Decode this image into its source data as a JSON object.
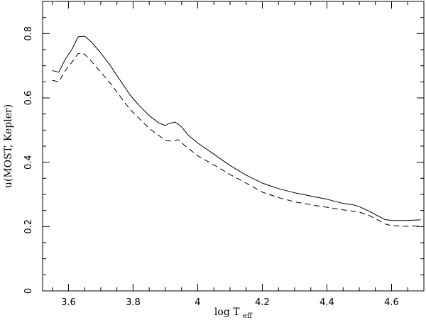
{
  "chart_data": {
    "type": "line",
    "title": "",
    "xlabel": "log T",
    "xlabel_subscript": "eff",
    "ylabel": "u(MOST, Kepler)",
    "xlim": [
      3.52,
      4.7
    ],
    "ylim": [
      0,
      0.9
    ],
    "xticks": [
      3.6,
      3.8,
      4.0,
      4.2,
      4.4,
      4.6
    ],
    "xtick_labels": [
      "3.6",
      "3.8",
      "4",
      "4.2",
      "4.4",
      "4.6"
    ],
    "yticks": [
      0,
      0.2,
      0.4,
      0.6,
      0.8
    ],
    "ytick_labels": [
      "0",
      "0.2",
      "0.4",
      "0.6",
      "0.8"
    ],
    "x_minor_step": 0.05,
    "y_minor_step": 0.05,
    "grid": false,
    "legend": "none",
    "series": [
      {
        "style": "solid",
        "x": [
          3.55,
          3.57,
          3.59,
          3.61,
          3.63,
          3.65,
          3.67,
          3.7,
          3.73,
          3.76,
          3.79,
          3.82,
          3.85,
          3.88,
          3.9,
          3.91,
          3.93,
          3.95,
          3.97,
          4.0,
          4.05,
          4.1,
          4.15,
          4.2,
          4.25,
          4.3,
          4.35,
          4.4,
          4.45,
          4.48,
          4.5,
          4.53,
          4.56,
          4.58,
          4.6,
          4.65,
          4.69
        ],
        "y": [
          0.685,
          0.68,
          0.72,
          0.75,
          0.79,
          0.792,
          0.775,
          0.74,
          0.7,
          0.655,
          0.61,
          0.575,
          0.545,
          0.522,
          0.514,
          0.52,
          0.525,
          0.51,
          0.485,
          0.46,
          0.425,
          0.39,
          0.36,
          0.335,
          0.318,
          0.305,
          0.295,
          0.285,
          0.272,
          0.268,
          0.262,
          0.248,
          0.232,
          0.222,
          0.219,
          0.219,
          0.221
        ]
      },
      {
        "style": "dashed",
        "x": [
          3.55,
          3.57,
          3.59,
          3.61,
          3.63,
          3.65,
          3.67,
          3.7,
          3.73,
          3.76,
          3.79,
          3.82,
          3.85,
          3.88,
          3.9,
          3.92,
          3.94,
          3.96,
          4.0,
          4.05,
          4.1,
          4.15,
          4.2,
          4.25,
          4.3,
          4.35,
          4.4,
          4.45,
          4.48,
          4.5,
          4.53,
          4.56,
          4.58,
          4.6,
          4.65,
          4.69
        ],
        "y": [
          0.655,
          0.65,
          0.685,
          0.71,
          0.738,
          0.736,
          0.715,
          0.68,
          0.645,
          0.605,
          0.565,
          0.535,
          0.505,
          0.483,
          0.468,
          0.465,
          0.47,
          0.452,
          0.42,
          0.392,
          0.362,
          0.335,
          0.307,
          0.29,
          0.277,
          0.268,
          0.26,
          0.252,
          0.248,
          0.245,
          0.235,
          0.219,
          0.208,
          0.203,
          0.201,
          0.202
        ]
      }
    ]
  }
}
